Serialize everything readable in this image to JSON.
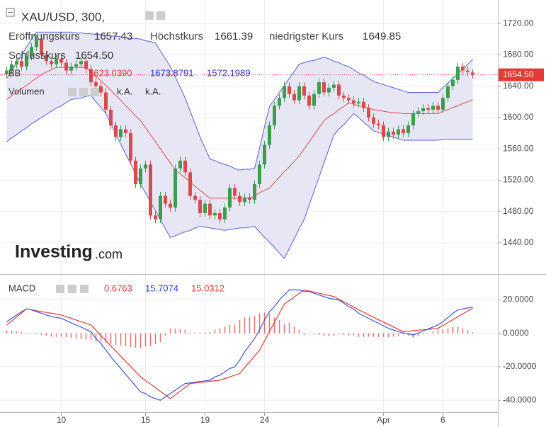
{
  "chart_data": [
    {
      "type": "candlestick",
      "title": "XAU/USD, 300,",
      "categories": [
        null,
        null,
        null,
        null,
        null,
        null,
        null,
        null,
        null,
        null,
        null,
        "10",
        null,
        null,
        null,
        null,
        null,
        null,
        null,
        null,
        null,
        null,
        null,
        null,
        null,
        null,
        null,
        null,
        "15",
        null,
        null,
        null,
        null,
        null,
        null,
        null,
        null,
        null,
        null,
        null,
        "19",
        null,
        null,
        null,
        null,
        null,
        null,
        null,
        null,
        null,
        null,
        null,
        "24",
        null,
        null,
        null,
        null,
        null,
        null,
        null,
        null,
        null,
        null,
        null,
        null,
        null,
        null,
        null,
        null,
        null,
        null,
        null,
        null,
        null,
        null,
        null,
        "Apr",
        null,
        null,
        null,
        null,
        null,
        null,
        null,
        null,
        null,
        null,
        null,
        "6",
        null,
        null,
        null,
        null,
        null,
        null
      ],
      "open": [
        1655,
        1660,
        1668,
        1672,
        1665,
        1678,
        1690,
        1700,
        1680,
        1672,
        1668,
        1675,
        1670,
        1660,
        1665,
        1668,
        1672,
        1662,
        1645,
        1640,
        1632,
        1610,
        1590,
        1575,
        1585,
        1580,
        1545,
        1515,
        1535,
        1540,
        1475,
        1470,
        1500,
        1490,
        1485,
        1535,
        1545,
        1530,
        1500,
        1495,
        1478,
        1490,
        1475,
        1478,
        1470,
        1485,
        1510,
        1500,
        1492,
        1498,
        1495,
        1515,
        1540,
        1565,
        1590,
        1615,
        1625,
        1640,
        1630,
        1622,
        1640,
        1628,
        1615,
        1630,
        1645,
        1632,
        1638,
        1642,
        1628,
        1625,
        1622,
        1618,
        1620,
        1612,
        1600,
        1592,
        1590,
        1575,
        1582,
        1578,
        1585,
        1580,
        1590,
        1605,
        1608,
        1612,
        1610,
        1615,
        1610,
        1625,
        1640,
        1648,
        1665,
        1660,
        1657.43
      ],
      "high": [
        1665,
        1673,
        1677,
        1677,
        1683,
        1695,
        1705,
        1705,
        1685,
        1677,
        1680,
        1680,
        1675,
        1670,
        1673,
        1677,
        1677,
        1667,
        1650,
        1645,
        1637,
        1615,
        1595,
        1590,
        1590,
        1585,
        1550,
        1540,
        1545,
        1545,
        1480,
        1505,
        1505,
        1495,
        1540,
        1550,
        1550,
        1535,
        1505,
        1500,
        1495,
        1495,
        1483,
        1483,
        1490,
        1515,
        1515,
        1505,
        1503,
        1503,
        1520,
        1545,
        1570,
        1595,
        1620,
        1630,
        1645,
        1645,
        1635,
        1645,
        1645,
        1633,
        1635,
        1650,
        1650,
        1643,
        1647,
        1647,
        1633,
        1630,
        1627,
        1625,
        1625,
        1617,
        1605,
        1597,
        1595,
        1587,
        1587,
        1590,
        1590,
        1595,
        1610,
        1613,
        1617,
        1617,
        1620,
        1620,
        1630,
        1645,
        1653,
        1670,
        1670,
        1665,
        1661.39
      ],
      "low": [
        1650,
        1655,
        1663,
        1660,
        1660,
        1673,
        1685,
        1675,
        1667,
        1663,
        1663,
        1665,
        1655,
        1655,
        1660,
        1663,
        1657,
        1640,
        1635,
        1627,
        1605,
        1585,
        1570,
        1570,
        1575,
        1540,
        1510,
        1510,
        1530,
        1470,
        1465,
        1465,
        1485,
        1480,
        1480,
        1530,
        1525,
        1495,
        1490,
        1473,
        1473,
        1470,
        1470,
        1465,
        1465,
        1480,
        1495,
        1487,
        1487,
        1490,
        1490,
        1510,
        1535,
        1560,
        1585,
        1610,
        1620,
        1625,
        1617,
        1617,
        1623,
        1610,
        1610,
        1625,
        1627,
        1627,
        1633,
        1623,
        1620,
        1617,
        1613,
        1613,
        1607,
        1595,
        1587,
        1585,
        1570,
        1570,
        1573,
        1573,
        1575,
        1575,
        1585,
        1600,
        1603,
        1605,
        1605,
        1605,
        1605,
        1620,
        1635,
        1643,
        1655,
        1653,
        1649.85
      ],
      "close": [
        1660,
        1668,
        1672,
        1665,
        1678,
        1690,
        1700,
        1680,
        1672,
        1668,
        1675,
        1670,
        1660,
        1665,
        1668,
        1672,
        1662,
        1645,
        1640,
        1632,
        1610,
        1590,
        1575,
        1585,
        1580,
        1545,
        1515,
        1535,
        1540,
        1475,
        1470,
        1500,
        1490,
        1485,
        1535,
        1545,
        1530,
        1500,
        1495,
        1478,
        1490,
        1475,
        1478,
        1470,
        1485,
        1510,
        1500,
        1492,
        1498,
        1495,
        1515,
        1540,
        1565,
        1590,
        1615,
        1625,
        1640,
        1630,
        1622,
        1640,
        1628,
        1615,
        1630,
        1645,
        1632,
        1638,
        1642,
        1628,
        1625,
        1622,
        1618,
        1620,
        1612,
        1600,
        1592,
        1590,
        1575,
        1582,
        1578,
        1585,
        1580,
        1590,
        1605,
        1608,
        1612,
        1610,
        1615,
        1610,
        1625,
        1640,
        1648,
        1665,
        1660,
        1658,
        1654.5
      ],
      "up_color": "#3c9e4d",
      "down_color": "#d94a4a",
      "last_color": "#e53935",
      "info": [
        {
          "name": "Eröffnungskurs",
          "value": 1657.43
        },
        {
          "name": "Höchstkurs",
          "value": 1661.39
        },
        {
          "name": "niedrigster Kurs",
          "value": 1649.85
        },
        {
          "name": "Schlusskurs",
          "value": 1654.5,
          "label": "1654.50"
        }
      ],
      "bands": {
        "label": "BB",
        "fill": "#e6e6f4",
        "middle": {
          "color": "#e05050",
          "values": [
            1623,
            1628,
            1632,
            1637,
            1641,
            1646,
            1650,
            1655,
            1658,
            1661,
            1664,
            1664,
            1664,
            1664,
            1664,
            1664,
            1664,
            1658,
            1652,
            1647,
            1641,
            1635,
            1628,
            1622,
            1615,
            1609,
            1602,
            1596,
            1587,
            1578,
            1569,
            1560,
            1551,
            1542,
            1533,
            1528,
            1523,
            1518,
            1512,
            1507,
            1502,
            1497,
            1497,
            1497,
            1497,
            1497,
            1497,
            1497,
            1497,
            1497,
            1500,
            1504,
            1507,
            1510,
            1517,
            1524,
            1531,
            1537,
            1544,
            1551,
            1560,
            1569,
            1578,
            1587,
            1596,
            1601,
            1605,
            1610,
            1614,
            1619,
            1617,
            1615,
            1614,
            1612,
            1610,
            1609,
            1608,
            1607,
            1606,
            1606,
            1605,
            1605,
            1605,
            1605,
            1605,
            1605,
            1605,
            1605,
            1608,
            1610,
            1613,
            1615,
            1618,
            1620,
            1623.039
          ]
        },
        "upper": {
          "color": "#5a5ee0",
          "values": [
            1650,
            1660,
            1670,
            1680,
            1690,
            1700,
            1709,
            1709,
            1709,
            1709,
            1709,
            1709,
            1709,
            1709,
            1708,
            1708,
            1707,
            1707,
            1706,
            1706,
            1705,
            1704,
            1704,
            1703,
            1702,
            1701,
            1701,
            1700,
            1698,
            1697,
            1695,
            1685,
            1675,
            1665,
            1652,
            1638,
            1625,
            1608,
            1592,
            1575,
            1561,
            1547,
            1545,
            1542,
            1540,
            1538,
            1535,
            1533,
            1534,
            1534,
            1535,
            1561,
            1588,
            1614,
            1623,
            1632,
            1641,
            1650,
            1659,
            1668,
            1670,
            1672,
            1673,
            1675,
            1677,
            1675,
            1672,
            1670,
            1667,
            1665,
            1661,
            1657,
            1654,
            1650,
            1646,
            1644,
            1642,
            1640,
            1638,
            1636,
            1634,
            1632,
            1632,
            1632,
            1632,
            1632,
            1632,
            1632,
            1638,
            1644,
            1650,
            1656,
            1662,
            1668,
            1673.8791
          ]
        },
        "lower": {
          "color": "#5a5ee0",
          "values": [
            1569,
            1574,
            1578,
            1583,
            1587,
            1592,
            1596,
            1600,
            1604,
            1608,
            1612,
            1615,
            1619,
            1623,
            1624,
            1625,
            1627,
            1628,
            1620,
            1613,
            1605,
            1592,
            1579,
            1566,
            1553,
            1541,
            1528,
            1515,
            1504,
            1492,
            1481,
            1470,
            1458,
            1447,
            1449,
            1452,
            1454,
            1456,
            1459,
            1461,
            1460,
            1459,
            1458,
            1457,
            1456,
            1457,
            1458,
            1459,
            1459,
            1460,
            1461,
            1454,
            1447,
            1441,
            1434,
            1427,
            1420,
            1433,
            1445,
            1458,
            1470,
            1488,
            1506,
            1524,
            1542,
            1560,
            1578,
            1585,
            1591,
            1598,
            1605,
            1600,
            1594,
            1589,
            1583,
            1581,
            1579,
            1577,
            1575,
            1573,
            1571,
            1571,
            1571,
            1571,
            1571,
            1571,
            1571,
            1571,
            1572,
            1572,
            1572,
            1572,
            1572,
            1572,
            1572.1989
          ]
        },
        "legend": [
          {
            "value": 1623.039,
            "label": "1623.0390",
            "color": "#e53935"
          },
          {
            "value": 1673.8791,
            "label": "1673.8791",
            "color": "#2a35d0"
          },
          {
            "value": 1572.1989,
            "label": "1572.1989",
            "color": "#2a35d0"
          }
        ]
      },
      "volume": {
        "label": "Volumen",
        "values": [
          "k.A.",
          "k.A."
        ]
      },
      "logo": [
        "Investing",
        ".com"
      ],
      "ylim": [
        1402,
        1750
      ],
      "yticks": [
        {
          "value": 1440,
          "label": "1440.00"
        },
        {
          "value": 1480,
          "label": "1480.00"
        },
        {
          "value": 1520,
          "label": "1520.00"
        },
        {
          "value": 1560,
          "label": "1560.00"
        },
        {
          "value": 1600,
          "label": "1600.00"
        },
        {
          "value": 1640,
          "label": "1640.00"
        },
        {
          "value": 1680,
          "label": "1680.00"
        },
        {
          "value": 1720,
          "label": "1720.00"
        }
      ],
      "grid": true
    },
    {
      "type": "macd",
      "title": "MACD",
      "macd": {
        "color": "#3f51e0",
        "values": [
          7,
          9,
          11,
          13,
          14.6,
          14,
          13,
          12,
          11,
          10,
          9.5,
          9,
          7.7,
          6.3,
          5,
          3.7,
          2.3,
          1,
          -3,
          -6,
          -10,
          -14,
          -17.5,
          -21,
          -24.5,
          -28,
          -31.5,
          -35,
          -36,
          -38,
          -39,
          -40,
          -38,
          -36,
          -34,
          -32,
          -30,
          -29.6,
          -29.2,
          -28.8,
          -28.4,
          -28,
          -26,
          -25,
          -23,
          -21,
          -20,
          -16,
          -11,
          -7,
          -3,
          2,
          8,
          13,
          16,
          20,
          23,
          26,
          26,
          26,
          25,
          25,
          24,
          23,
          22,
          21,
          20.5,
          20,
          18,
          16,
          14.5,
          12,
          10.5,
          9,
          7.5,
          6,
          4.5,
          3,
          2,
          1,
          0.3,
          -0.3,
          -1,
          0.2,
          1.4,
          2.6,
          3.8,
          5,
          7,
          9.5,
          12,
          14,
          14.6,
          15.2,
          15.7074
        ]
      },
      "signal": {
        "color": "#e53935",
        "values": [
          5,
          7.4,
          9.8,
          12.2,
          14.6,
          14.1,
          13.5,
          13,
          12.5,
          12,
          11.5,
          11,
          10,
          9,
          8,
          7,
          6,
          5,
          1.9,
          -1.3,
          -4.4,
          -7.5,
          -10.6,
          -13.7,
          -16.8,
          -19.8,
          -22.9,
          -26,
          -28.2,
          -30.3,
          -32.5,
          -34.7,
          -36.8,
          -39,
          -36.8,
          -34.5,
          -32.3,
          -30,
          -29.7,
          -29.3,
          -29,
          -28.7,
          -28.3,
          -28,
          -27,
          -26,
          -25,
          -24,
          -20.5,
          -17,
          -13.5,
          -10,
          -4.5,
          1,
          6.5,
          12,
          17.5,
          19.6,
          21.8,
          23.9,
          26,
          25.3,
          24.7,
          24,
          23.3,
          22.7,
          22,
          20.4,
          18.9,
          17.3,
          15.7,
          14.1,
          12.6,
          11,
          9.6,
          8.1,
          6.7,
          5.3,
          3.9,
          2.4,
          1,
          1.3,
          1.6,
          1.9,
          2.1,
          2.4,
          2.7,
          3,
          4.7,
          6.5,
          8.2,
          10,
          11.7,
          13.3,
          15.0312
        ]
      },
      "histogram": {
        "color": "#e57373",
        "values": [
          2,
          1.6,
          1.2,
          0.8,
          0,
          -0.1,
          -0.5,
          -1,
          -1.5,
          -2,
          -2,
          -2,
          -2.3,
          -2.7,
          -3,
          -3.3,
          -3.7,
          -4,
          -4.9,
          -4.7,
          -5.6,
          -6.5,
          -6.9,
          -7.3,
          -7.7,
          -8.2,
          -8.6,
          -9,
          -7.8,
          -7.7,
          -6.5,
          -5.3,
          -1.2,
          3,
          2.8,
          2.5,
          2.3,
          0.4,
          0.5,
          0.5,
          0.6,
          0.7,
          2.3,
          3,
          4,
          5,
          5,
          8,
          9.5,
          10,
          10.5,
          12,
          12.5,
          12,
          9.5,
          8,
          5.5,
          6.4,
          4.2,
          2.1,
          -1,
          -0.3,
          -0.7,
          -1,
          -1.3,
          -1.7,
          -1.5,
          -0.4,
          -0.9,
          -1.3,
          -1.2,
          -2.1,
          -2.1,
          -2,
          -2.1,
          -2.1,
          -2.2,
          -2.3,
          -1.9,
          -1.4,
          -0.7,
          -1.6,
          -2.6,
          -1.7,
          -0.7,
          0.2,
          1.1,
          2,
          2.3,
          3,
          3.8,
          4,
          2.9,
          1.9,
          0.6763
        ]
      },
      "legend": [
        {
          "value": 0.6763,
          "color": "#e53935"
        },
        {
          "value": 15.7074,
          "color": "#2a35d0"
        },
        {
          "value": 15.0312,
          "color": "#e53935"
        }
      ],
      "ylim": [
        -47.1,
        34.2
      ],
      "yticks": [
        {
          "value": -40,
          "label": "-40.0000"
        },
        {
          "value": -20,
          "label": "-20.0000"
        },
        {
          "value": 0,
          "label": "0.0000"
        },
        {
          "value": 20,
          "label": "20.0000"
        }
      ],
      "grid": true
    }
  ]
}
